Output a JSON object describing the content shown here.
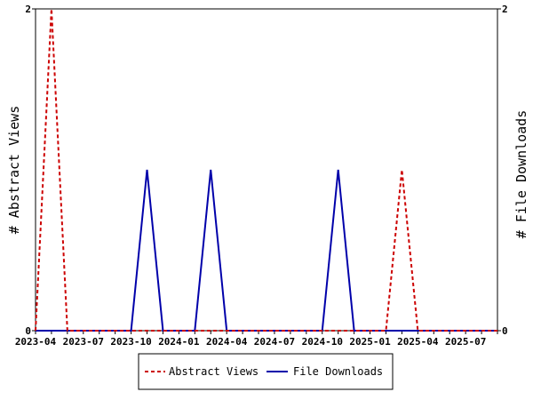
{
  "chart_data": {
    "type": "line",
    "x": [
      "2023-04",
      "2023-05",
      "2023-06",
      "2023-07",
      "2023-08",
      "2023-09",
      "2023-10",
      "2023-11",
      "2023-12",
      "2024-01",
      "2024-02",
      "2024-03",
      "2024-04",
      "2024-05",
      "2024-06",
      "2024-07",
      "2024-08",
      "2024-09",
      "2024-10",
      "2024-11",
      "2024-12",
      "2025-01",
      "2025-02",
      "2025-03",
      "2025-04",
      "2025-05",
      "2025-06",
      "2025-07",
      "2025-08",
      "2025-09"
    ],
    "x_tick_labels": [
      "2023-04",
      "2023-07",
      "2023-10",
      "2024-01",
      "2024-04",
      "2024-07",
      "2024-10",
      "2025-01",
      "2025-04",
      "2025-07"
    ],
    "series": [
      {
        "name": "Abstract Views",
        "axis": "left",
        "color": "#cc0000",
        "dash": "dashed",
        "values": [
          0,
          2,
          0,
          0,
          0,
          0,
          0,
          0,
          0,
          0,
          0,
          0,
          0,
          0,
          0,
          0,
          0,
          0,
          0,
          0,
          0,
          0,
          0,
          1,
          0,
          0,
          0,
          0,
          0,
          0
        ]
      },
      {
        "name": "File Downloads",
        "axis": "right",
        "color": "#0000aa",
        "dash": "solid",
        "values": [
          0,
          0,
          0,
          0,
          0,
          0,
          0,
          1,
          0,
          0,
          0,
          1,
          0,
          0,
          0,
          0,
          0,
          0,
          0,
          1,
          0,
          0,
          0,
          0,
          0,
          0,
          0,
          0,
          0,
          0
        ]
      }
    ],
    "ylabel": "# Abstract Views",
    "ylabel_right": "# File Downloads",
    "ylim": [
      0,
      2
    ],
    "ylim_right": [
      0,
      2
    ],
    "y_tick_labels": [
      "0",
      "2"
    ],
    "y_tick_labels_right": [
      "0",
      "2"
    ],
    "grid": false,
    "legend_position": "bottom"
  }
}
